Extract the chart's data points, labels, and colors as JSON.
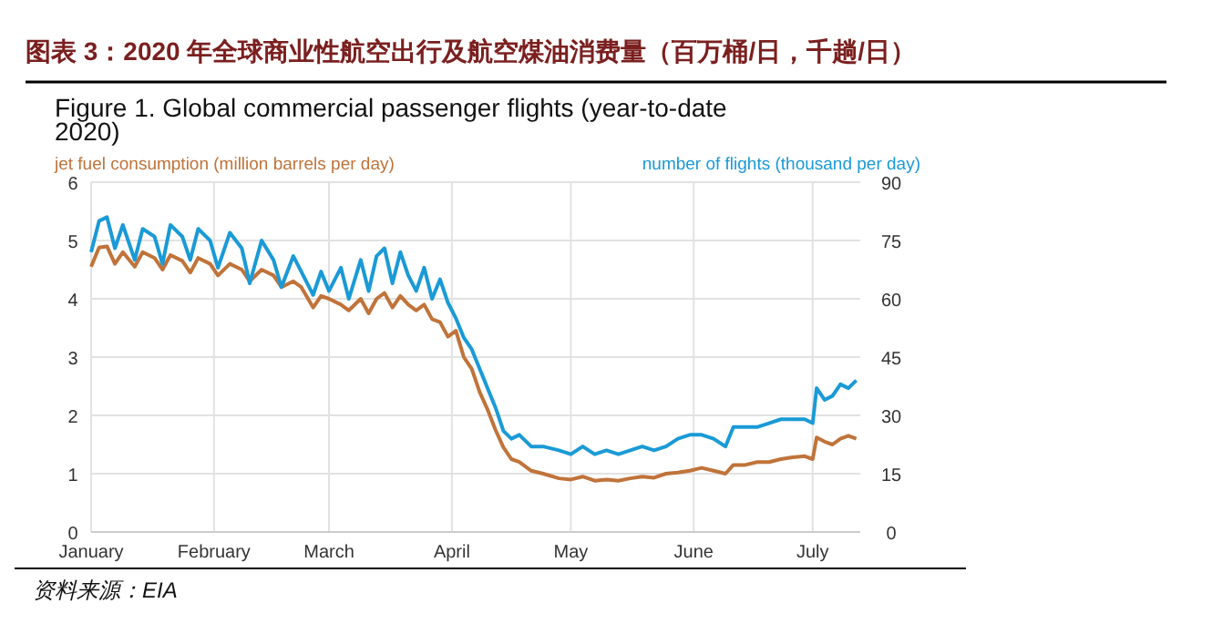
{
  "chart_data": {
    "type": "line",
    "title": "图表 3：2020 年全球商业性航空出行及航空煤油消费量（百万桶/日，千趟/日）",
    "subtitle": "Figure 1. Global commercial passenger flights (year-to-date 2020)",
    "ylabel": "jet fuel consumption (million barrels per day)",
    "y2label": "number of flights (thousand per day)",
    "annotations": [
      "资料来源：EIA"
    ],
    "x": [
      "2020-01-01",
      "2020-01-03",
      "2020-01-05",
      "2020-01-07",
      "2020-01-09",
      "2020-01-12",
      "2020-01-14",
      "2020-01-17",
      "2020-01-19",
      "2020-01-21",
      "2020-01-24",
      "2020-01-26",
      "2020-01-28",
      "2020-01-31",
      "2020-02-02",
      "2020-02-05",
      "2020-02-08",
      "2020-02-10",
      "2020-02-13",
      "2020-02-16",
      "2020-02-18",
      "2020-02-21",
      "2020-02-23",
      "2020-02-26",
      "2020-02-28",
      "2020-03-01",
      "2020-03-04",
      "2020-03-06",
      "2020-03-09",
      "2020-03-11",
      "2020-03-13",
      "2020-03-15",
      "2020-03-17",
      "2020-03-19",
      "2020-03-21",
      "2020-03-23",
      "2020-03-25",
      "2020-03-27",
      "2020-03-29",
      "2020-03-31",
      "2020-04-02",
      "2020-04-04",
      "2020-04-06",
      "2020-04-08",
      "2020-04-10",
      "2020-04-12",
      "2020-04-14",
      "2020-04-16",
      "2020-04-18",
      "2020-04-21",
      "2020-04-24",
      "2020-04-28",
      "2020-05-01",
      "2020-05-04",
      "2020-05-07",
      "2020-05-10",
      "2020-05-13",
      "2020-05-16",
      "2020-05-19",
      "2020-05-22",
      "2020-05-25",
      "2020-05-28",
      "2020-05-31",
      "2020-06-03",
      "2020-06-06",
      "2020-06-09",
      "2020-06-11",
      "2020-06-14",
      "2020-06-17",
      "2020-06-20",
      "2020-06-23",
      "2020-06-26",
      "2020-06-29",
      "2020-07-01",
      "2020-07-02",
      "2020-07-04",
      "2020-07-06",
      "2020-07-08",
      "2020-07-10",
      "2020-07-12"
    ],
    "series": [
      {
        "color": "#c0733a",
        "values": [
          4.55,
          4.88,
          4.9,
          4.6,
          4.8,
          4.55,
          4.8,
          4.7,
          4.5,
          4.75,
          4.65,
          4.45,
          4.7,
          4.6,
          4.4,
          4.6,
          4.5,
          4.3,
          4.5,
          4.4,
          4.2,
          4.3,
          4.2,
          3.85,
          4.05,
          4.0,
          3.9,
          3.8,
          4.0,
          3.75,
          4.0,
          4.1,
          3.85,
          4.05,
          3.9,
          3.8,
          3.9,
          3.65,
          3.6,
          3.35,
          3.45,
          3.0,
          2.8,
          2.4,
          2.1,
          1.75,
          1.45,
          1.25,
          1.2,
          1.05,
          1.0,
          0.92,
          0.9,
          0.95,
          0.88,
          0.9,
          0.88,
          0.92,
          0.95,
          0.93,
          1.0,
          1.02,
          1.05,
          1.1,
          1.05,
          1.0,
          1.15,
          1.15,
          1.2,
          1.2,
          1.25,
          1.28,
          1.3,
          1.25,
          1.62,
          1.55,
          1.5,
          1.6,
          1.65,
          1.6
        ]
      },
      {
        "color": "#1a9ad6",
        "axis": "y2",
        "values": [
          72,
          80,
          81,
          73,
          79,
          70,
          78,
          76,
          69,
          79,
          76,
          70,
          78,
          75,
          68,
          77,
          73,
          64,
          75,
          70,
          63,
          71,
          67,
          61,
          67,
          62,
          68,
          60,
          70,
          62,
          71,
          73,
          64,
          72,
          66,
          62,
          68,
          60,
          65,
          59,
          55,
          50,
          47,
          42,
          37,
          32,
          26,
          24,
          25,
          22,
          22,
          21,
          20,
          22,
          20,
          21,
          20,
          21,
          22,
          21,
          22,
          24,
          25,
          25,
          24,
          22,
          27,
          27,
          27,
          28,
          29,
          29,
          29,
          28,
          37,
          34,
          35,
          38,
          37,
          39
        ]
      }
    ],
    "xlim": [
      "2020-01-01",
      "2020-07-13"
    ],
    "xticks": [
      {
        "value": "2020-01-01",
        "label": "January"
      },
      {
        "value": "2020-02-01",
        "label": "February"
      },
      {
        "value": "2020-03-01",
        "label": "March"
      },
      {
        "value": "2020-04-01",
        "label": "April"
      },
      {
        "value": "2020-05-01",
        "label": "May"
      },
      {
        "value": "2020-06-01",
        "label": "June"
      },
      {
        "value": "2020-07-01",
        "label": "July"
      }
    ],
    "ylim": [
      0,
      6
    ],
    "yticks": [
      0,
      1,
      2,
      3,
      4,
      5,
      6
    ],
    "y2lim": [
      0,
      90
    ],
    "y2ticks": [
      0,
      15,
      30,
      45,
      60,
      75,
      90
    ],
    "grid": true
  }
}
